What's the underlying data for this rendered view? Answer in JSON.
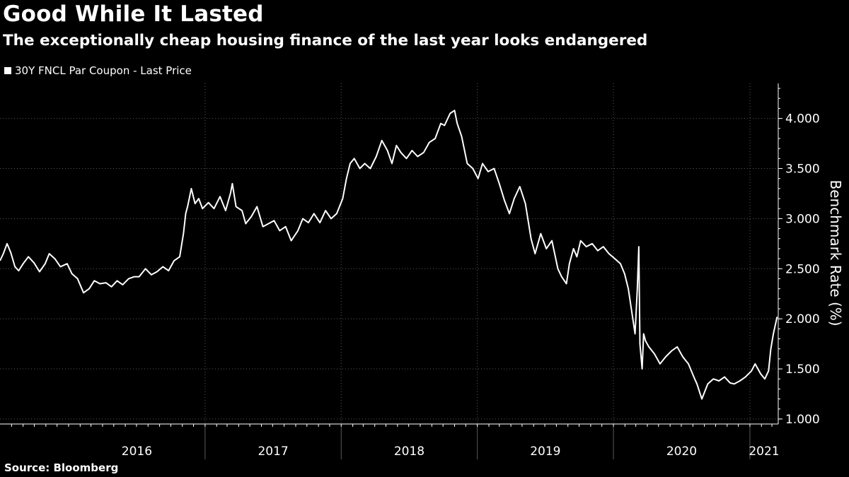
{
  "chart_data": {
    "type": "line",
    "title": "Good While It Lasted",
    "subtitle": "The exceptionally cheap housing finance of the last year looks endangered",
    "ylabel": "Benchmark Rate (%)",
    "xlabel": "",
    "source": "Source: Bloomberg",
    "ylim": [
      0.95,
      4.35
    ],
    "xlim": [
      "2015-07-01",
      "2021-03-18"
    ],
    "grid": true,
    "legend_position": "top-left",
    "y_ticks": [
      {
        "value": 1.0,
        "label": "1.000"
      },
      {
        "value": 1.5,
        "label": "1.500"
      },
      {
        "value": 2.0,
        "label": "2.000"
      },
      {
        "value": 2.5,
        "label": "2.500"
      },
      {
        "value": 3.0,
        "label": "3.000"
      },
      {
        "value": 3.5,
        "label": "3.500"
      },
      {
        "value": 4.0,
        "label": "4.000"
      }
    ],
    "x_ticks": [
      {
        "label": "2016",
        "start": "2016-01-01",
        "end": "2017-01-01"
      },
      {
        "label": "2017",
        "start": "2017-01-01",
        "end": "2018-01-01"
      },
      {
        "label": "2018",
        "start": "2018-01-01",
        "end": "2019-01-01"
      },
      {
        "label": "2019",
        "start": "2019-01-01",
        "end": "2020-01-01"
      },
      {
        "label": "2020",
        "start": "2020-01-01",
        "end": "2021-01-01"
      },
      {
        "label": "2021",
        "start": "2021-01-01",
        "end": "2021-03-18"
      }
    ],
    "series": [
      {
        "name": "30Y FNCL Par Coupon - Last Price",
        "color": "#ffffff",
        "x": [
          "2015-07-01",
          "2015-07-10",
          "2015-07-20",
          "2015-07-30",
          "2015-08-10",
          "2015-08-20",
          "2015-09-01",
          "2015-09-15",
          "2015-09-30",
          "2015-10-15",
          "2015-10-30",
          "2015-11-10",
          "2015-11-25",
          "2015-12-10",
          "2015-12-28",
          "2016-01-10",
          "2016-01-25",
          "2016-02-10",
          "2016-02-25",
          "2016-03-10",
          "2016-03-25",
          "2016-04-10",
          "2016-04-25",
          "2016-05-10",
          "2016-05-25",
          "2016-06-10",
          "2016-06-25",
          "2016-07-08",
          "2016-07-25",
          "2016-08-10",
          "2016-08-25",
          "2016-09-10",
          "2016-09-25",
          "2016-10-10",
          "2016-10-25",
          "2016-11-04",
          "2016-11-10",
          "2016-11-15",
          "2016-11-25",
          "2016-12-05",
          "2016-12-15",
          "2016-12-25",
          "2017-01-10",
          "2017-01-25",
          "2017-02-10",
          "2017-02-25",
          "2017-03-10",
          "2017-03-15",
          "2017-03-25",
          "2017-04-10",
          "2017-04-20",
          "2017-05-05",
          "2017-05-20",
          "2017-06-05",
          "2017-06-20",
          "2017-07-05",
          "2017-07-20",
          "2017-08-05",
          "2017-08-20",
          "2017-09-07",
          "2017-09-20",
          "2017-10-05",
          "2017-10-20",
          "2017-11-05",
          "2017-11-20",
          "2017-12-05",
          "2017-12-20",
          "2018-01-05",
          "2018-01-15",
          "2018-01-25",
          "2018-02-05",
          "2018-02-20",
          "2018-03-05",
          "2018-03-20",
          "2018-04-05",
          "2018-04-20",
          "2018-05-05",
          "2018-05-17",
          "2018-05-29",
          "2018-06-10",
          "2018-06-25",
          "2018-07-10",
          "2018-07-25",
          "2018-08-10",
          "2018-08-25",
          "2018-09-10",
          "2018-09-25",
          "2018-10-05",
          "2018-10-20",
          "2018-11-01",
          "2018-11-08",
          "2018-11-20",
          "2018-12-05",
          "2018-12-20",
          "2019-01-03",
          "2019-01-15",
          "2019-01-30",
          "2019-02-15",
          "2019-03-01",
          "2019-03-15",
          "2019-03-28",
          "2019-04-10",
          "2019-04-25",
          "2019-05-10",
          "2019-05-25",
          "2019-06-05",
          "2019-06-20",
          "2019-07-05",
          "2019-07-20",
          "2019-08-05",
          "2019-08-15",
          "2019-08-28",
          "2019-09-05",
          "2019-09-16",
          "2019-09-25",
          "2019-10-05",
          "2019-10-20",
          "2019-11-05",
          "2019-11-20",
          "2019-12-05",
          "2019-12-20",
          "2020-01-05",
          "2020-01-20",
          "2020-01-31",
          "2020-02-10",
          "2020-02-20",
          "2020-02-28",
          "2020-03-05",
          "2020-03-09",
          "2020-03-12",
          "2020-03-18",
          "2020-03-22",
          "2020-03-27",
          "2020-04-05",
          "2020-04-20",
          "2020-05-05",
          "2020-05-20",
          "2020-06-05",
          "2020-06-20",
          "2020-07-05",
          "2020-07-20",
          "2020-08-06",
          "2020-08-12",
          "2020-08-25",
          "2020-09-10",
          "2020-09-25",
          "2020-10-10",
          "2020-10-25",
          "2020-11-09",
          "2020-11-20",
          "2020-12-05",
          "2020-12-20",
          "2021-01-05",
          "2021-01-15",
          "2021-01-30",
          "2021-02-10",
          "2021-02-20",
          "2021-02-26",
          "2021-03-05",
          "2021-03-15"
        ],
        "values": [
          2.58,
          2.65,
          2.75,
          2.66,
          2.52,
          2.48,
          2.55,
          2.62,
          2.56,
          2.47,
          2.55,
          2.65,
          2.6,
          2.52,
          2.55,
          2.45,
          2.4,
          2.26,
          2.3,
          2.38,
          2.35,
          2.36,
          2.32,
          2.38,
          2.34,
          2.4,
          2.42,
          2.42,
          2.5,
          2.44,
          2.47,
          2.52,
          2.48,
          2.58,
          2.62,
          2.85,
          3.05,
          3.12,
          3.3,
          3.15,
          3.2,
          3.1,
          3.16,
          3.1,
          3.22,
          3.08,
          3.25,
          3.35,
          3.12,
          3.08,
          2.95,
          3.02,
          3.12,
          2.92,
          2.95,
          2.98,
          2.88,
          2.92,
          2.78,
          2.88,
          3.0,
          2.96,
          3.05,
          2.96,
          3.08,
          3.0,
          3.05,
          3.2,
          3.4,
          3.55,
          3.6,
          3.5,
          3.55,
          3.5,
          3.62,
          3.78,
          3.68,
          3.55,
          3.73,
          3.66,
          3.6,
          3.68,
          3.62,
          3.66,
          3.76,
          3.8,
          3.95,
          3.93,
          4.05,
          4.08,
          3.95,
          3.82,
          3.55,
          3.5,
          3.4,
          3.55,
          3.47,
          3.5,
          3.35,
          3.18,
          3.05,
          3.2,
          3.32,
          3.15,
          2.8,
          2.65,
          2.85,
          2.7,
          2.78,
          2.5,
          2.42,
          2.35,
          2.55,
          2.7,
          2.62,
          2.78,
          2.72,
          2.75,
          2.68,
          2.72,
          2.65,
          2.6,
          2.55,
          2.45,
          2.3,
          2.05,
          1.85,
          2.3,
          2.72,
          1.75,
          1.5,
          1.85,
          1.78,
          1.72,
          1.65,
          1.55,
          1.62,
          1.68,
          1.72,
          1.62,
          1.55,
          1.4,
          1.35,
          1.2,
          1.35,
          1.4,
          1.38,
          1.42,
          1.36,
          1.35,
          1.38,
          1.42,
          1.48,
          1.55,
          1.45,
          1.4,
          1.48,
          1.7,
          1.85,
          2.02
        ]
      }
    ]
  }
}
